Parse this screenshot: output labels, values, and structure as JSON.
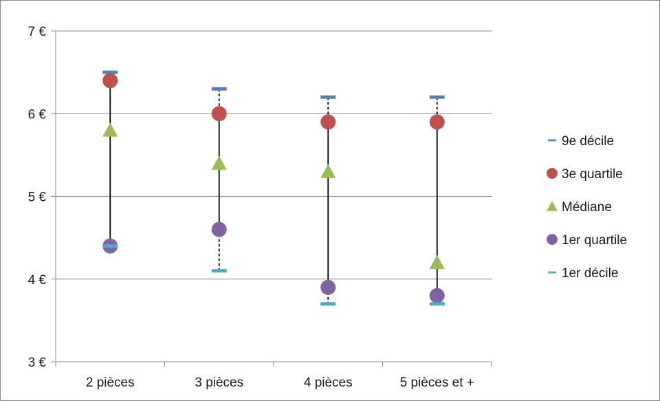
{
  "chart_data": {
    "type": "scatter",
    "categories": [
      "2 pièces",
      "3 pièces",
      "4 pièces",
      "5 pièces et +"
    ],
    "y_tick_labels": [
      "3 €",
      "4 €",
      "5 €",
      "6 €",
      "7 €"
    ],
    "ylim": [
      3,
      7
    ],
    "grid": true,
    "legend_position": "right",
    "series": [
      {
        "name": "9e décile",
        "marker": "dash",
        "color": "#4F81BD",
        "values": [
          6.5,
          6.3,
          6.2,
          6.2
        ]
      },
      {
        "name": "3e quartile",
        "marker": "circle",
        "color": "#C0504D",
        "values": [
          6.4,
          6.0,
          5.9,
          5.9
        ]
      },
      {
        "name": "Médiane",
        "marker": "triangle",
        "color": "#9BBB59",
        "values": [
          5.8,
          5.4,
          5.3,
          4.2
        ]
      },
      {
        "name": "1er quartile",
        "marker": "circle",
        "color": "#8064A2",
        "values": [
          4.4,
          4.6,
          3.9,
          3.8
        ]
      },
      {
        "name": "1er décile",
        "marker": "dash",
        "color": "#4BACC6",
        "values": [
          4.4,
          4.1,
          3.7,
          3.7
        ]
      }
    ],
    "line_color": "#000000"
  }
}
